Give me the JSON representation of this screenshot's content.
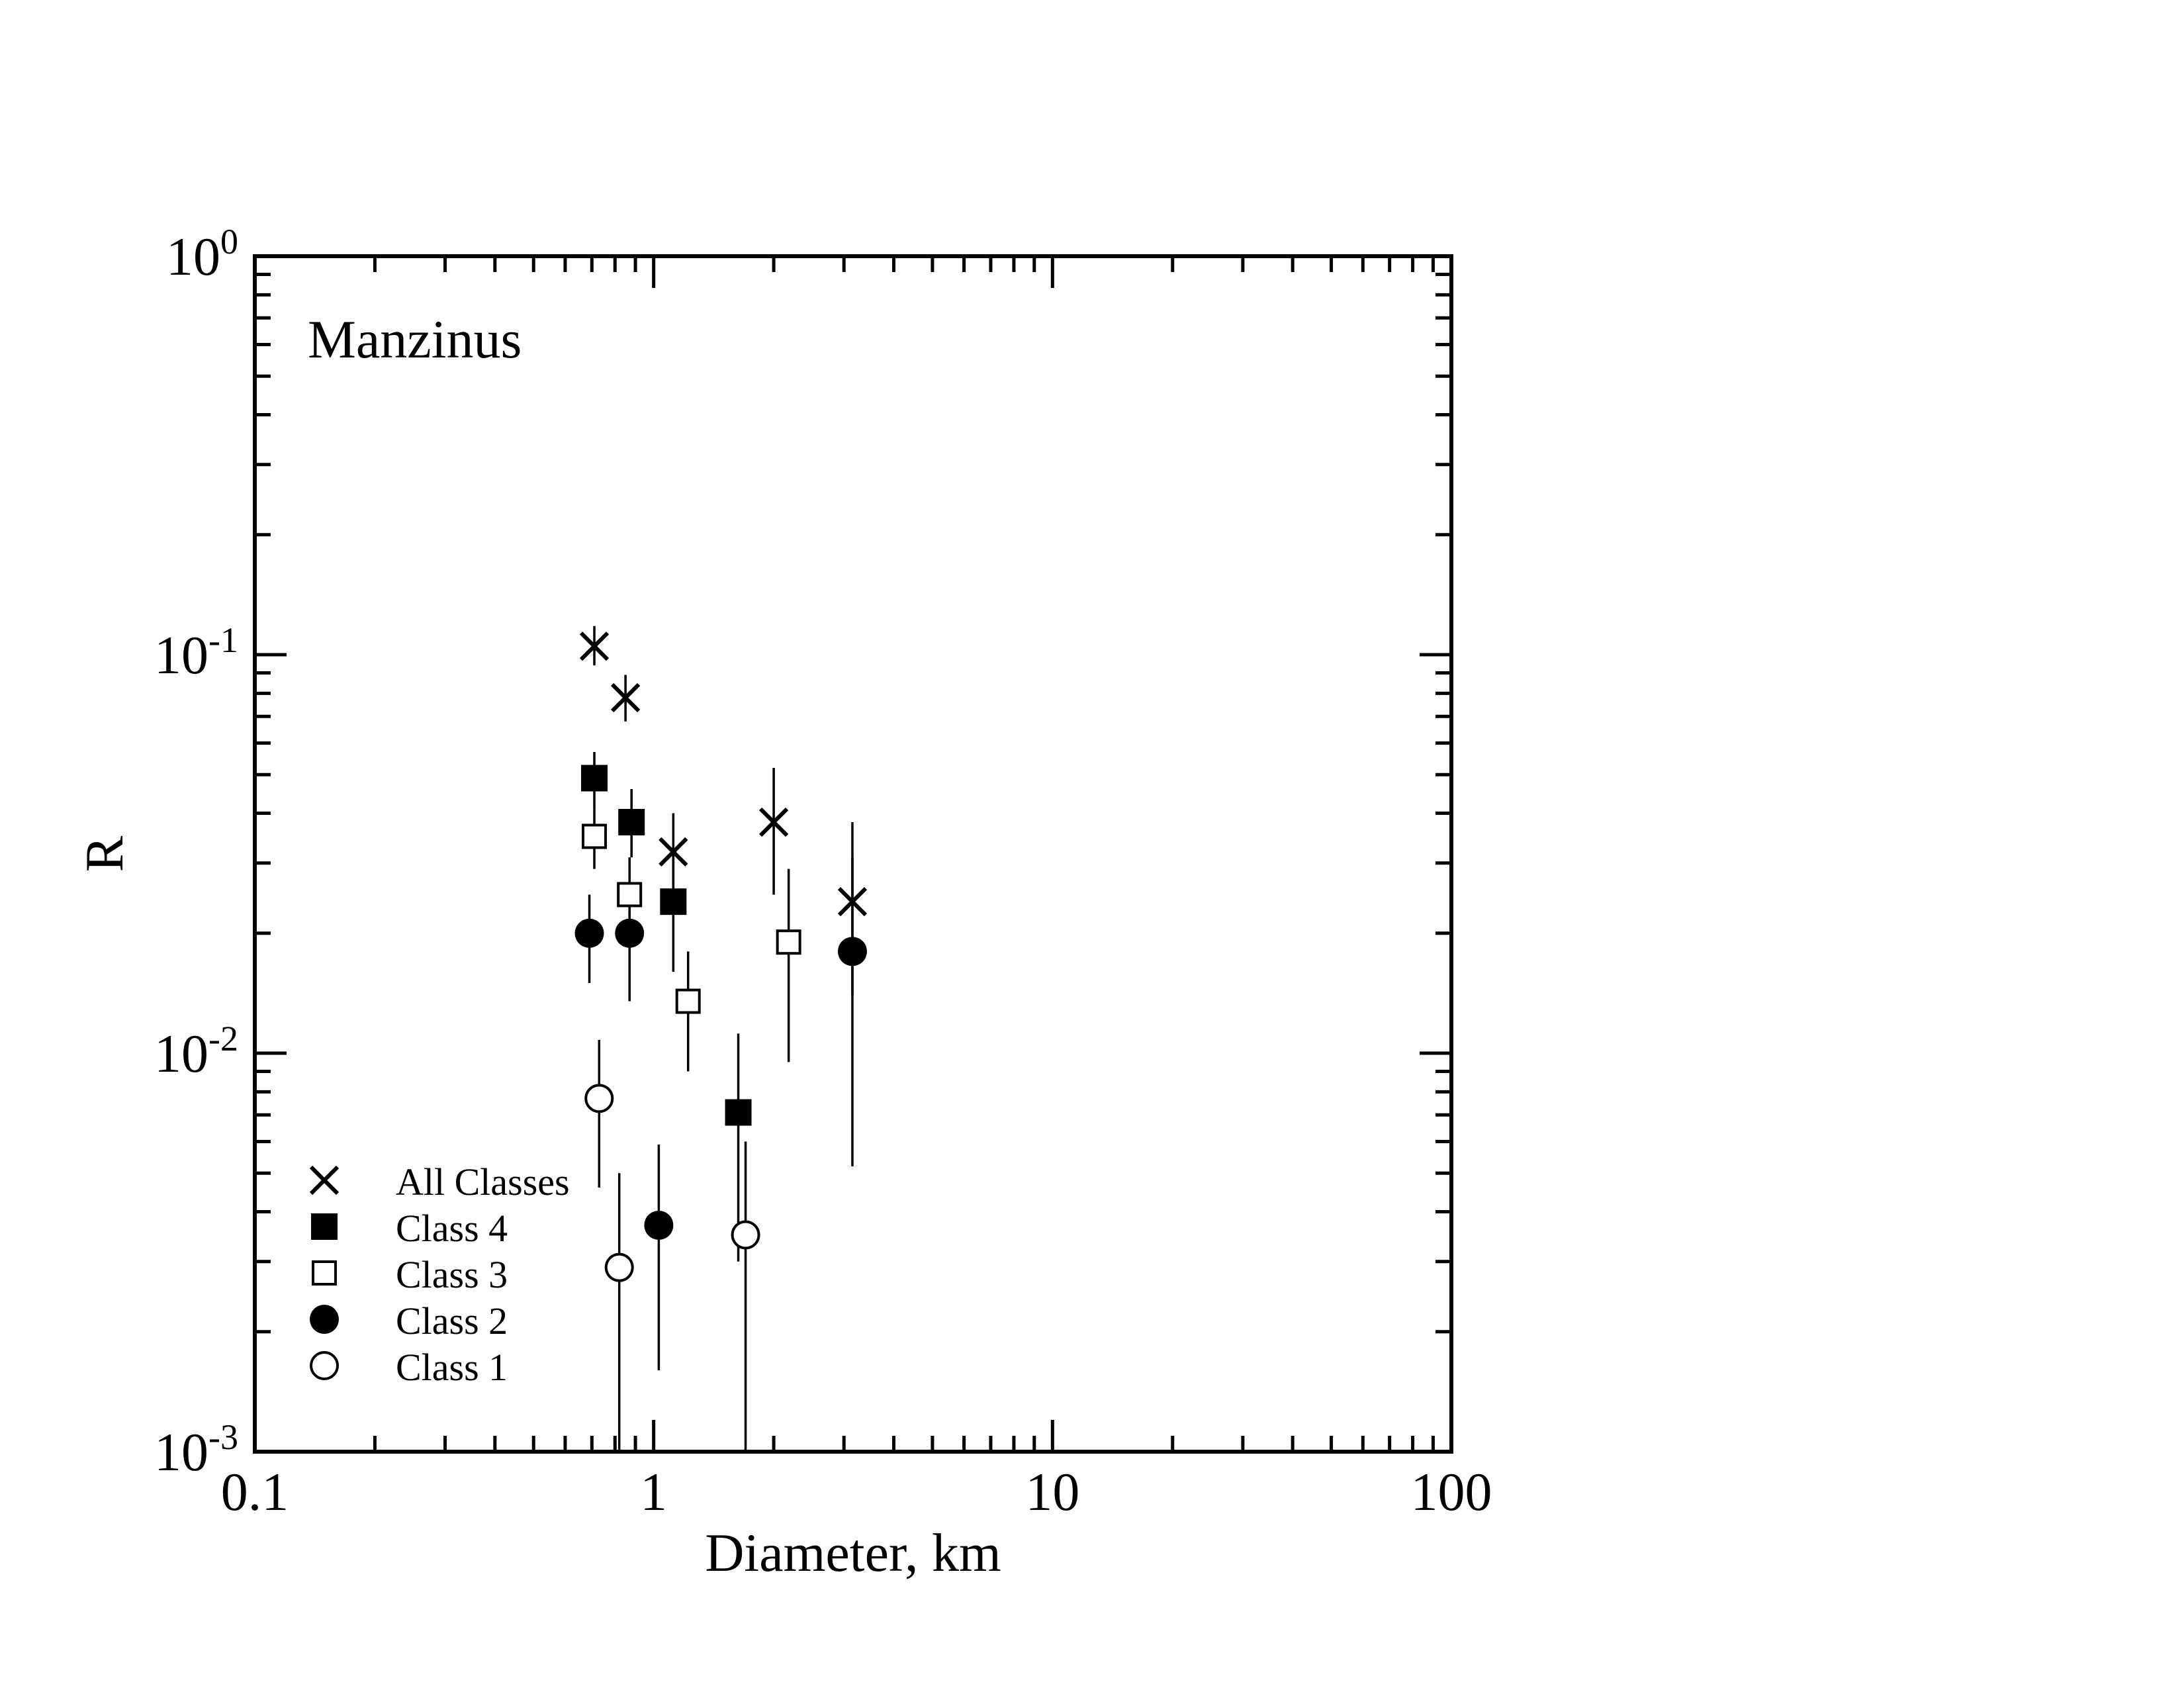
{
  "chart_data": {
    "type": "scatter",
    "title": "Manzinus",
    "xlabel": "Diameter, km",
    "ylabel": "R",
    "x_scale": "log",
    "y_scale": "log",
    "xlim": [
      0.1,
      100
    ],
    "ylim": [
      0.001,
      1
    ],
    "x_ticks": [
      {
        "value": 0.1,
        "label": "0.1"
      },
      {
        "value": 1,
        "label": "1"
      },
      {
        "value": 10,
        "label": "10"
      },
      {
        "value": 100,
        "label": "100"
      }
    ],
    "y_ticks": [
      {
        "value": 0.001,
        "base": "10",
        "exp": "-3"
      },
      {
        "value": 0.01,
        "base": "10",
        "exp": "-2"
      },
      {
        "value": 0.1,
        "base": "10",
        "exp": "-1"
      },
      {
        "value": 1,
        "base": "10",
        "exp": "0"
      }
    ],
    "grid": false,
    "legend_position": "bottom-left",
    "series": [
      {
        "name": "All Classes",
        "marker": "x",
        "points": [
          {
            "x": 0.71,
            "y": 0.105,
            "lo": 0.094,
            "hi": 0.118
          },
          {
            "x": 0.85,
            "y": 0.078,
            "lo": 0.068,
            "hi": 0.089
          },
          {
            "x": 1.12,
            "y": 0.032,
            "lo": 0.025,
            "hi": 0.04
          },
          {
            "x": 2.0,
            "y": 0.038,
            "lo": 0.025,
            "hi": 0.052
          },
          {
            "x": 3.15,
            "y": 0.024,
            "lo": 0.014,
            "hi": 0.038
          }
        ]
      },
      {
        "name": "Class 4",
        "marker": "filled-square",
        "points": [
          {
            "x": 0.71,
            "y": 0.049,
            "lo": 0.041,
            "hi": 0.057
          },
          {
            "x": 0.88,
            "y": 0.038,
            "lo": 0.031,
            "hi": 0.046
          },
          {
            "x": 1.12,
            "y": 0.024,
            "lo": 0.016,
            "hi": 0.032
          },
          {
            "x": 1.63,
            "y": 0.0071,
            "lo": 0.003,
            "hi": 0.0112
          }
        ]
      },
      {
        "name": "Class 3",
        "marker": "open-square",
        "points": [
          {
            "x": 0.71,
            "y": 0.035,
            "lo": 0.029,
            "hi": 0.041
          },
          {
            "x": 0.87,
            "y": 0.025,
            "lo": 0.02,
            "hi": 0.031
          },
          {
            "x": 1.22,
            "y": 0.0135,
            "lo": 0.009,
            "hi": 0.018
          },
          {
            "x": 2.18,
            "y": 0.019,
            "lo": 0.0095,
            "hi": 0.029
          }
        ]
      },
      {
        "name": "Class 2",
        "marker": "filled-circle",
        "points": [
          {
            "x": 0.69,
            "y": 0.02,
            "lo": 0.015,
            "hi": 0.025
          },
          {
            "x": 0.87,
            "y": 0.02,
            "lo": 0.0135,
            "hi": 0.026
          },
          {
            "x": 1.03,
            "y": 0.0037,
            "lo": 0.0016,
            "hi": 0.0059
          },
          {
            "x": 3.15,
            "y": 0.018,
            "lo": 0.0052,
            "hi": 0.031
          }
        ]
      },
      {
        "name": "Class 1",
        "marker": "open-circle",
        "points": [
          {
            "x": 0.73,
            "y": 0.0077,
            "lo": 0.0046,
            "hi": 0.0108
          },
          {
            "x": 0.82,
            "y": 0.0029,
            "lo": 0.001,
            "hi": 0.005
          },
          {
            "x": 1.7,
            "y": 0.0035,
            "lo": 0.001,
            "hi": 0.006
          }
        ]
      }
    ]
  }
}
